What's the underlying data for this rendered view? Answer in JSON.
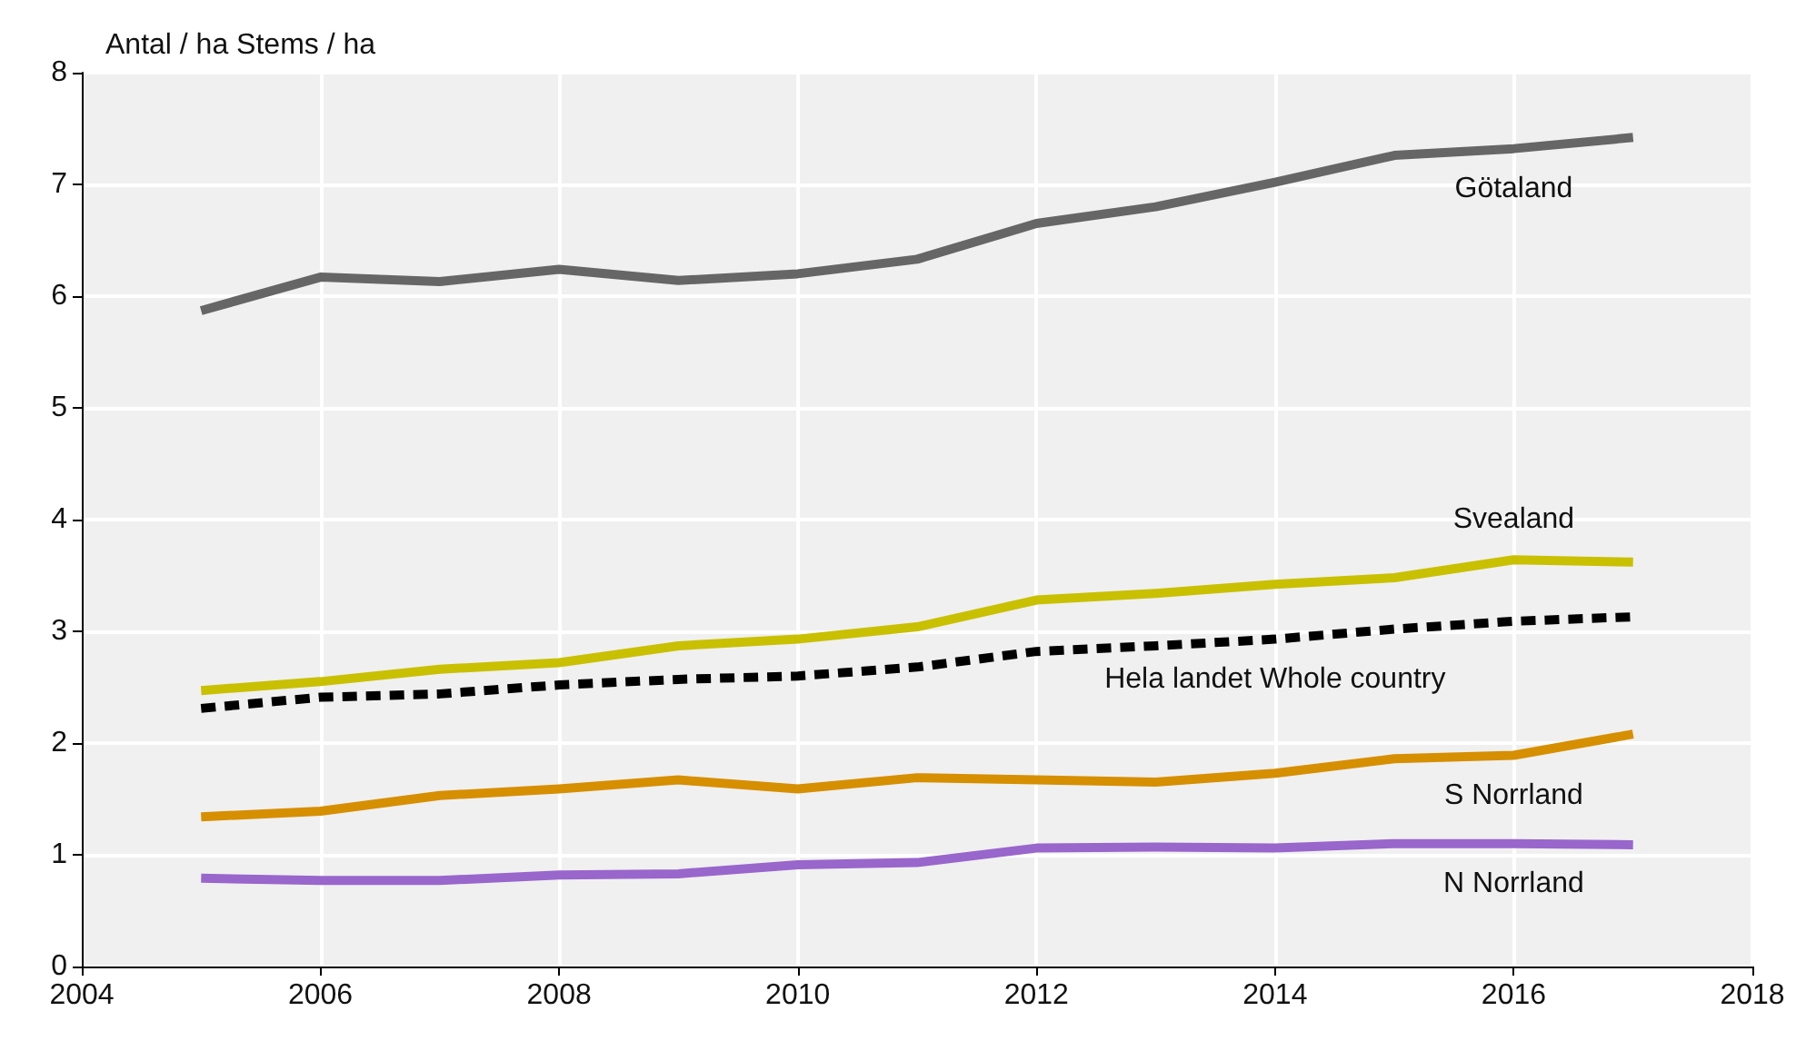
{
  "chart_data": {
    "type": "line",
    "ylabel": "Antal / ha Stems / ha",
    "x": [
      2005,
      2006,
      2007,
      2008,
      2009,
      2010,
      2011,
      2012,
      2013,
      2014,
      2015,
      2016,
      2017
    ],
    "series": [
      {
        "name": "Götaland",
        "color": "#666666",
        "values": [
          5.87,
          6.17,
          6.13,
          6.24,
          6.14,
          6.2,
          6.33,
          6.65,
          6.8,
          7.02,
          7.26,
          7.32,
          7.42
        ]
      },
      {
        "name": "Svealand",
        "color": "#c8c000",
        "values": [
          2.47,
          2.55,
          2.66,
          2.72,
          2.87,
          2.93,
          3.04,
          3.28,
          3.34,
          3.42,
          3.48,
          3.64,
          3.62
        ]
      },
      {
        "name": "Hela landet Whole country",
        "color": "#000000",
        "line_style": "dashed",
        "values": [
          2.31,
          2.41,
          2.44,
          2.52,
          2.57,
          2.6,
          2.68,
          2.82,
          2.87,
          2.93,
          3.02,
          3.09,
          3.13
        ]
      },
      {
        "name": "S Norrland",
        "color": "#d68f00",
        "values": [
          1.34,
          1.39,
          1.53,
          1.59,
          1.67,
          1.59,
          1.69,
          1.67,
          1.65,
          1.73,
          1.86,
          1.89,
          2.08
        ]
      },
      {
        "name": "N Norrland",
        "color": "#9966cc",
        "values": [
          0.79,
          0.77,
          0.77,
          0.82,
          0.83,
          0.91,
          0.93,
          1.06,
          1.07,
          1.06,
          1.1,
          1.1,
          1.09
        ]
      }
    ],
    "xlim": [
      2004,
      2018
    ],
    "xticks": [
      2004,
      2006,
      2008,
      2010,
      2012,
      2014,
      2016,
      2018
    ],
    "ylim": [
      0,
      8
    ],
    "yticks": [
      0,
      1,
      2,
      3,
      4,
      5,
      6,
      7,
      8
    ],
    "grid": true,
    "legend": false,
    "marker": "none",
    "line_style": "solid"
  }
}
